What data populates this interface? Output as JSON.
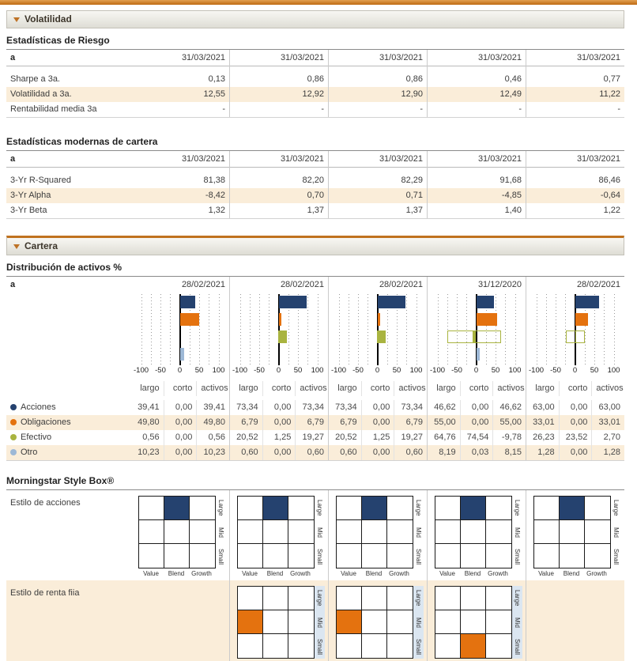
{
  "colors": {
    "accent_orange": "#C0721F",
    "row_cream": "#FAEDD9",
    "navy": "#25426F",
    "bar_orange": "#E4720F",
    "green": "#A9B440",
    "light_blue": "#9DB8D6",
    "ybar_blue": "#DBE6F1"
  },
  "volatilidad": {
    "title": "Volatilidad",
    "risk": {
      "heading": "Estadísticas de Riesgo",
      "col_header": "a",
      "dates": [
        "31/03/2021",
        "31/03/2021",
        "31/03/2021",
        "31/03/2021",
        "31/03/2021"
      ],
      "rows": [
        {
          "label": "Sharpe a 3a.",
          "shaded": false,
          "values": [
            "0,13",
            "0,86",
            "0,86",
            "0,46",
            "0,77"
          ]
        },
        {
          "label": "Volatilidad a 3a.",
          "shaded": true,
          "values": [
            "12,55",
            "12,92",
            "12,90",
            "12,49",
            "11,22"
          ]
        },
        {
          "label": "Rentabilidad media 3a",
          "shaded": false,
          "values": [
            "-",
            "-",
            "-",
            "-",
            "-"
          ]
        }
      ]
    },
    "mpt": {
      "heading": "Estadísticas modernas de cartera",
      "col_header": "a",
      "dates": [
        "31/03/2021",
        "31/03/2021",
        "31/03/2021",
        "31/03/2021",
        "31/03/2021"
      ],
      "rows": [
        {
          "label": "3-Yr R-Squared",
          "shaded": false,
          "values": [
            "81,38",
            "82,20",
            "82,29",
            "91,68",
            "86,46"
          ]
        },
        {
          "label": "3-Yr Alpha",
          "shaded": true,
          "values": [
            "-8,42",
            "0,70",
            "0,71",
            "-4,85",
            "-0,64"
          ]
        },
        {
          "label": "3-Yr Beta",
          "shaded": false,
          "values": [
            "1,32",
            "1,37",
            "1,37",
            "1,40",
            "1,22"
          ]
        }
      ]
    }
  },
  "cartera": {
    "title": "Cartera",
    "allocation": {
      "heading": "Distribución de activos %",
      "col_header": "a",
      "dates": [
        "28/02/2021",
        "28/02/2021",
        "28/02/2021",
        "31/12/2020",
        "28/02/2021"
      ],
      "sub_headers": [
        "largo",
        "corto",
        "activos"
      ],
      "rows": [
        {
          "label": "Acciones",
          "color": "#25426F",
          "shaded": false,
          "cells": [
            [
              "39,41",
              "0,00",
              "39,41"
            ],
            [
              "73,34",
              "0,00",
              "73,34"
            ],
            [
              "73,34",
              "0,00",
              "73,34"
            ],
            [
              "46,62",
              "0,00",
              "46,62"
            ],
            [
              "63,00",
              "0,00",
              "63,00"
            ]
          ]
        },
        {
          "label": "Obligaciones",
          "color": "#E4720F",
          "shaded": true,
          "cells": [
            [
              "49,80",
              "0,00",
              "49,80"
            ],
            [
              "6,79",
              "0,00",
              "6,79"
            ],
            [
              "6,79",
              "0,00",
              "6,79"
            ],
            [
              "55,00",
              "0,00",
              "55,00"
            ],
            [
              "33,01",
              "0,00",
              "33,01"
            ]
          ]
        },
        {
          "label": "Efectivo",
          "color": "#A9B440",
          "shaded": false,
          "cells": [
            [
              "0,56",
              "0,00",
              "0,56"
            ],
            [
              "20,52",
              "1,25",
              "19,27"
            ],
            [
              "20,52",
              "1,25",
              "19,27"
            ],
            [
              "64,76",
              "74,54",
              "-9,78"
            ],
            [
              "26,23",
              "23,52",
              "2,70"
            ]
          ]
        },
        {
          "label": "Otro",
          "color": "#9DB8D6",
          "shaded": true,
          "cells": [
            [
              "10,23",
              "0,00",
              "10,23"
            ],
            [
              "0,60",
              "0,00",
              "0,60"
            ],
            [
              "0,60",
              "0,00",
              "0,60"
            ],
            [
              "8,19",
              "0,03",
              "8,15"
            ],
            [
              "1,28",
              "0,00",
              "1,28"
            ]
          ]
        }
      ]
    },
    "style_box": {
      "heading": "Morningstar Style Box®",
      "x_labels": [
        "Value",
        "Blend",
        "Growth"
      ],
      "y_labels": [
        "Large",
        "Mid",
        "Small"
      ],
      "rows": [
        {
          "label": "Estilo de acciones",
          "fill_color": "#25426F",
          "shaded": false,
          "boxes": [
            [
              0,
              1
            ],
            [
              0,
              1
            ],
            [
              0,
              1
            ],
            [
              0,
              1
            ],
            [
              0,
              1
            ]
          ]
        },
        {
          "label": "Estilo de renta fija",
          "fill_color": "#E4720F",
          "shaded": true,
          "boxes": [
            null,
            [
              1,
              0
            ],
            [
              1,
              0
            ],
            [
              2,
              1
            ],
            null
          ]
        }
      ]
    }
  },
  "chart_data": {
    "type": "bar",
    "orientation": "horizontal",
    "title": "Distribución de activos %",
    "xlim": [
      -100,
      100
    ],
    "x_ticks": [
      -100,
      -50,
      0,
      50,
      100
    ],
    "grid": "dotted vertical every 25",
    "categories": [
      "Acciones",
      "Obligaciones",
      "Efectivo",
      "Otro"
    ],
    "colors": [
      "#25426F",
      "#E4720F",
      "#A9B440",
      "#9DB8D6"
    ],
    "charts": [
      {
        "date": "28/02/2021",
        "net": [
          39.41,
          49.8,
          0.56,
          10.23
        ],
        "long": [
          39.41,
          49.8,
          0.56,
          10.23
        ],
        "short": [
          0,
          0,
          0,
          0
        ]
      },
      {
        "date": "28/02/2021",
        "net": [
          73.34,
          6.79,
          19.27,
          0.6
        ],
        "long": [
          73.34,
          6.79,
          20.52,
          0.6
        ],
        "short": [
          0,
          0,
          1.25,
          0
        ]
      },
      {
        "date": "28/02/2021",
        "net": [
          73.34,
          6.79,
          19.27,
          0.6
        ],
        "long": [
          73.34,
          6.79,
          20.52,
          0.6
        ],
        "short": [
          0,
          0,
          1.25,
          0
        ]
      },
      {
        "date": "31/12/2020",
        "net": [
          46.62,
          55.0,
          -9.78,
          8.15
        ],
        "long": [
          46.62,
          55.0,
          64.76,
          8.19
        ],
        "short": [
          0,
          0,
          74.54,
          0.03
        ]
      },
      {
        "date": "28/02/2021",
        "net": [
          63.0,
          33.01,
          2.7,
          1.28
        ],
        "long": [
          63.0,
          33.01,
          26.23,
          1.28
        ],
        "short": [
          0,
          0,
          23.52,
          0
        ]
      }
    ]
  }
}
